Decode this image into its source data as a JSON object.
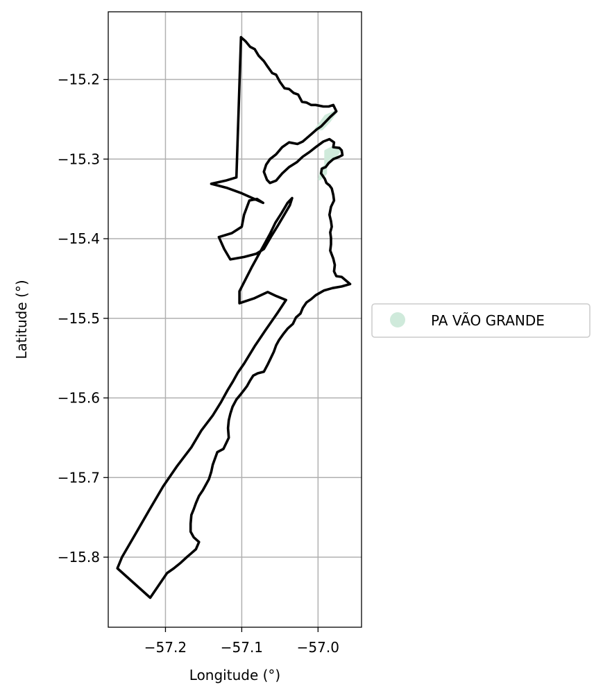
{
  "chart_data": {
    "type": "map",
    "xlabel": "Longitude (°)",
    "ylabel": "Latitude (°)",
    "xlim": [
      -57.275,
      -56.943
    ],
    "ylim": [
      -15.888,
      -15.115
    ],
    "grid": true,
    "legend_placement": "right",
    "x_ticks": [
      {
        "value": -57.2,
        "label": "−57.2"
      },
      {
        "value": -57.1,
        "label": "−57.1"
      },
      {
        "value": -57.0,
        "label": "−57.0"
      }
    ],
    "y_ticks": [
      {
        "value": -15.2,
        "label": "−15.2"
      },
      {
        "value": -15.3,
        "label": "−15.3"
      },
      {
        "value": -15.4,
        "label": "−15.4"
      },
      {
        "value": -15.5,
        "label": "−15.5"
      },
      {
        "value": -15.6,
        "label": "−15.6"
      },
      {
        "value": -15.7,
        "label": "−15.7"
      },
      {
        "value": -15.8,
        "label": "−15.8"
      }
    ],
    "legend": [
      {
        "label": "PA VÃO GRANDE",
        "color": "#cfeadb"
      }
    ],
    "series": [
      {
        "kind": "outline",
        "color": "#000000",
        "coords": [
          [
            -57.101,
            -15.147
          ],
          [
            -57.095,
            -15.152
          ],
          [
            -57.089,
            -15.159
          ],
          [
            -57.083,
            -15.162
          ],
          [
            -57.078,
            -15.17
          ],
          [
            -57.071,
            -15.177
          ],
          [
            -57.066,
            -15.184
          ],
          [
            -57.06,
            -15.192
          ],
          [
            -57.055,
            -15.194
          ],
          [
            -57.05,
            -15.203
          ],
          [
            -57.044,
            -15.211
          ],
          [
            -57.038,
            -15.212
          ],
          [
            -57.032,
            -15.217
          ],
          [
            -57.026,
            -15.219
          ],
          [
            -57.021,
            -15.228
          ],
          [
            -57.015,
            -15.229
          ],
          [
            -57.009,
            -15.232
          ],
          [
            -57.003,
            -15.232
          ],
          [
            -56.993,
            -15.234
          ],
          [
            -56.986,
            -15.234
          ],
          [
            -56.98,
            -15.232
          ],
          [
            -56.976,
            -15.24
          ],
          [
            -56.984,
            -15.247
          ],
          [
            -56.99,
            -15.253
          ],
          [
            -56.996,
            -15.259
          ],
          [
            -57.002,
            -15.263
          ],
          [
            -57.008,
            -15.268
          ],
          [
            -57.014,
            -15.273
          ],
          [
            -57.02,
            -15.278
          ],
          [
            -57.027,
            -15.281
          ],
          [
            -57.038,
            -15.279
          ],
          [
            -57.047,
            -15.285
          ],
          [
            -57.055,
            -15.294
          ],
          [
            -57.063,
            -15.3
          ],
          [
            -57.068,
            -15.307
          ],
          [
            -57.071,
            -15.316
          ],
          [
            -57.067,
            -15.326
          ],
          [
            -57.063,
            -15.33
          ],
          [
            -57.055,
            -15.327
          ],
          [
            -57.047,
            -15.318
          ],
          [
            -57.038,
            -15.31
          ],
          [
            -57.028,
            -15.304
          ],
          [
            -57.02,
            -15.297
          ],
          [
            -57.011,
            -15.291
          ],
          [
            -57.003,
            -15.285
          ],
          [
            -56.993,
            -15.278
          ],
          [
            -56.985,
            -15.275
          ],
          [
            -56.979,
            -15.279
          ],
          [
            -56.98,
            -15.285
          ],
          [
            -56.972,
            -15.286
          ],
          [
            -56.969,
            -15.289
          ],
          [
            -56.968,
            -15.295
          ],
          [
            -56.972,
            -15.297
          ],
          [
            -56.98,
            -15.3
          ],
          [
            -56.986,
            -15.305
          ],
          [
            -56.99,
            -15.31
          ],
          [
            -56.995,
            -15.312
          ],
          [
            -56.996,
            -15.318
          ],
          [
            -56.991,
            -15.325
          ],
          [
            -56.989,
            -15.33
          ],
          [
            -56.985,
            -15.333
          ],
          [
            -56.982,
            -15.337
          ],
          [
            -56.98,
            -15.345
          ],
          [
            -56.979,
            -15.352
          ],
          [
            -56.983,
            -15.36
          ],
          [
            -56.985,
            -15.37
          ],
          [
            -56.983,
            -15.378
          ],
          [
            -56.982,
            -15.385
          ],
          [
            -56.984,
            -15.392
          ],
          [
            -56.983,
            -15.399
          ],
          [
            -56.983,
            -15.407
          ],
          [
            -56.984,
            -15.415
          ],
          [
            -56.98,
            -15.425
          ],
          [
            -56.978,
            -15.433
          ],
          [
            -56.979,
            -15.441
          ],
          [
            -56.976,
            -15.447
          ],
          [
            -56.969,
            -15.448
          ],
          [
            -56.958,
            -15.457
          ],
          [
            -56.969,
            -15.46
          ],
          [
            -56.981,
            -15.462
          ],
          [
            -56.992,
            -15.465
          ],
          [
            -57.003,
            -15.471
          ],
          [
            -57.009,
            -15.476
          ],
          [
            -57.015,
            -15.48
          ],
          [
            -57.02,
            -15.487
          ],
          [
            -57.023,
            -15.494
          ],
          [
            -57.029,
            -15.499
          ],
          [
            -57.033,
            -15.507
          ],
          [
            -57.04,
            -15.513
          ],
          [
            -57.045,
            -15.519
          ],
          [
            -57.051,
            -15.527
          ],
          [
            -57.055,
            -15.534
          ],
          [
            -57.058,
            -15.542
          ],
          [
            -57.062,
            -15.55
          ],
          [
            -57.066,
            -15.558
          ],
          [
            -57.071,
            -15.567
          ],
          [
            -57.079,
            -15.569
          ],
          [
            -57.085,
            -15.572
          ],
          [
            -57.089,
            -15.578
          ],
          [
            -57.093,
            -15.585
          ],
          [
            -57.097,
            -15.59
          ],
          [
            -57.101,
            -15.595
          ],
          [
            -57.107,
            -15.602
          ],
          [
            -57.112,
            -15.611
          ],
          [
            -57.115,
            -15.62
          ],
          [
            -57.117,
            -15.628
          ],
          [
            -57.118,
            -15.638
          ],
          [
            -57.117,
            -15.65
          ],
          [
            -57.12,
            -15.656
          ],
          [
            -57.124,
            -15.664
          ],
          [
            -57.132,
            -15.668
          ],
          [
            -57.135,
            -15.676
          ],
          [
            -57.138,
            -15.684
          ],
          [
            -57.14,
            -15.693
          ],
          [
            -57.143,
            -15.702
          ],
          [
            -57.147,
            -15.709
          ],
          [
            -57.151,
            -15.716
          ],
          [
            -57.156,
            -15.723
          ],
          [
            -57.16,
            -15.732
          ],
          [
            -57.163,
            -15.74
          ],
          [
            -57.166,
            -15.747
          ],
          [
            -57.167,
            -15.758
          ],
          [
            -57.167,
            -15.768
          ],
          [
            -57.163,
            -15.775
          ],
          [
            -57.156,
            -15.781
          ],
          [
            -57.16,
            -15.79
          ],
          [
            -57.166,
            -15.795
          ],
          [
            -57.172,
            -15.8
          ],
          [
            -57.18,
            -15.807
          ],
          [
            -57.189,
            -15.814
          ],
          [
            -57.198,
            -15.82
          ],
          [
            -57.22,
            -15.851
          ],
          [
            -57.263,
            -15.814
          ],
          [
            -57.257,
            -15.8
          ],
          [
            -57.24,
            -15.772
          ],
          [
            -57.222,
            -15.742
          ],
          [
            -57.203,
            -15.711
          ],
          [
            -57.185,
            -15.686
          ],
          [
            -57.166,
            -15.662
          ],
          [
            -57.153,
            -15.641
          ],
          [
            -57.138,
            -15.622
          ],
          [
            -57.127,
            -15.605
          ],
          [
            -57.119,
            -15.591
          ],
          [
            -57.112,
            -15.58
          ],
          [
            -57.105,
            -15.568
          ],
          [
            -57.097,
            -15.557
          ],
          [
            -57.09,
            -15.546
          ],
          [
            -57.083,
            -15.535
          ],
          [
            -57.076,
            -15.525
          ],
          [
            -57.069,
            -15.515
          ],
          [
            -57.061,
            -15.504
          ],
          [
            -57.053,
            -15.493
          ],
          [
            -57.042,
            -15.477
          ],
          [
            -57.055,
            -15.472
          ],
          [
            -57.066,
            -15.467
          ],
          [
            -57.084,
            -15.475
          ],
          [
            -57.103,
            -15.481
          ],
          [
            -57.103,
            -15.466
          ],
          [
            -57.095,
            -15.451
          ],
          [
            -57.087,
            -15.436
          ],
          [
            -57.079,
            -15.422
          ],
          [
            -57.071,
            -15.408
          ],
          [
            -57.063,
            -15.394
          ],
          [
            -57.056,
            -15.38
          ],
          [
            -57.048,
            -15.368
          ],
          [
            -57.04,
            -15.355
          ],
          [
            -57.034,
            -15.349
          ],
          [
            -57.037,
            -15.358
          ],
          [
            -57.045,
            -15.371
          ],
          [
            -57.053,
            -15.384
          ],
          [
            -57.062,
            -15.398
          ],
          [
            -57.071,
            -15.413
          ],
          [
            -57.081,
            -15.419
          ],
          [
            -57.097,
            -15.423
          ],
          [
            -57.115,
            -15.426
          ],
          [
            -57.123,
            -15.413
          ],
          [
            -57.13,
            -15.398
          ],
          [
            -57.113,
            -15.393
          ],
          [
            -57.1,
            -15.385
          ],
          [
            -57.097,
            -15.37
          ],
          [
            -57.09,
            -15.352
          ],
          [
            -57.08,
            -15.35
          ],
          [
            -57.072,
            -15.355
          ],
          [
            -57.1,
            -15.343
          ],
          [
            -57.12,
            -15.336
          ],
          [
            -57.14,
            -15.331
          ],
          [
            -57.121,
            -15.327
          ],
          [
            -57.107,
            -15.323
          ],
          [
            -57.101,
            -15.147
          ]
        ]
      }
    ],
    "highlight_areas": [
      {
        "name": "PA VÃO GRANDE",
        "color": "#cfeadb",
        "coords": [
          [
            -56.995,
            -15.262
          ],
          [
            -56.985,
            -15.252
          ],
          [
            -56.976,
            -15.24
          ],
          [
            -56.99,
            -15.246
          ],
          [
            -57.003,
            -15.263
          ]
        ]
      },
      {
        "name": "PA VÃO GRANDE",
        "color": "#cfeadb",
        "coords": [
          [
            -56.99,
            -15.29
          ],
          [
            -56.98,
            -15.285
          ],
          [
            -56.972,
            -15.29
          ],
          [
            -56.98,
            -15.3
          ],
          [
            -56.995,
            -15.312
          ],
          [
            -56.998,
            -15.325
          ],
          [
            -56.99,
            -15.318
          ]
        ]
      }
    ]
  }
}
